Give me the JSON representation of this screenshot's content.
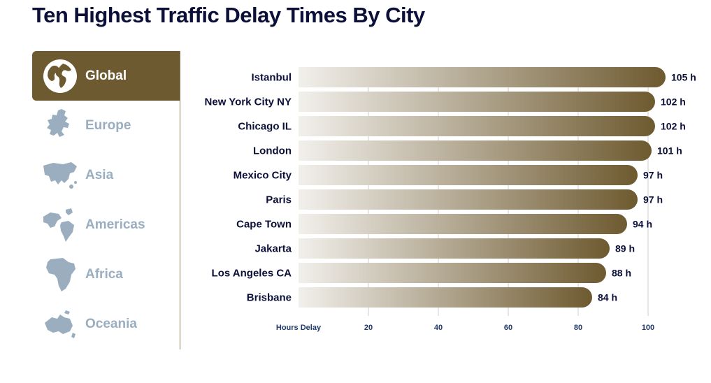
{
  "title": "Ten Highest Traffic Delay Times By City",
  "tabs": [
    {
      "label": "Global",
      "icon": "globe-icon",
      "active": true
    },
    {
      "label": "Europe",
      "icon": "europe-map-icon",
      "active": false
    },
    {
      "label": "Asia",
      "icon": "asia-map-icon",
      "active": false
    },
    {
      "label": "Americas",
      "icon": "americas-map-icon",
      "active": false
    },
    {
      "label": "Africa",
      "icon": "africa-map-icon",
      "active": false
    },
    {
      "label": "Oceania",
      "icon": "oceania-map-icon",
      "active": false
    }
  ],
  "colors": {
    "accent": "#6e5a30",
    "bar_start": "#f2f0ec",
    "bar_end": "#6e5a30",
    "inactive_text": "#9aaec0",
    "title": "#0c1038"
  },
  "chart_data": {
    "type": "bar",
    "orientation": "horizontal",
    "categories": [
      "Istanbul",
      "New York City NY",
      "Chicago IL",
      "London",
      "Mexico City",
      "Paris",
      "Cape Town",
      "Jakarta",
      "Los Angeles CA",
      "Brisbane"
    ],
    "values": [
      105,
      102,
      102,
      101,
      97,
      97,
      94,
      89,
      88,
      84
    ],
    "value_labels": [
      "105 h",
      "102 h",
      "102 h",
      "101 h",
      "97 h",
      "97 h",
      "94 h",
      "89 h",
      "88 h",
      "84 h"
    ],
    "xlabel": "Hours Delay",
    "xticks": [
      20,
      40,
      60,
      80,
      100
    ],
    "xlim": [
      0,
      100
    ],
    "grid": true
  }
}
